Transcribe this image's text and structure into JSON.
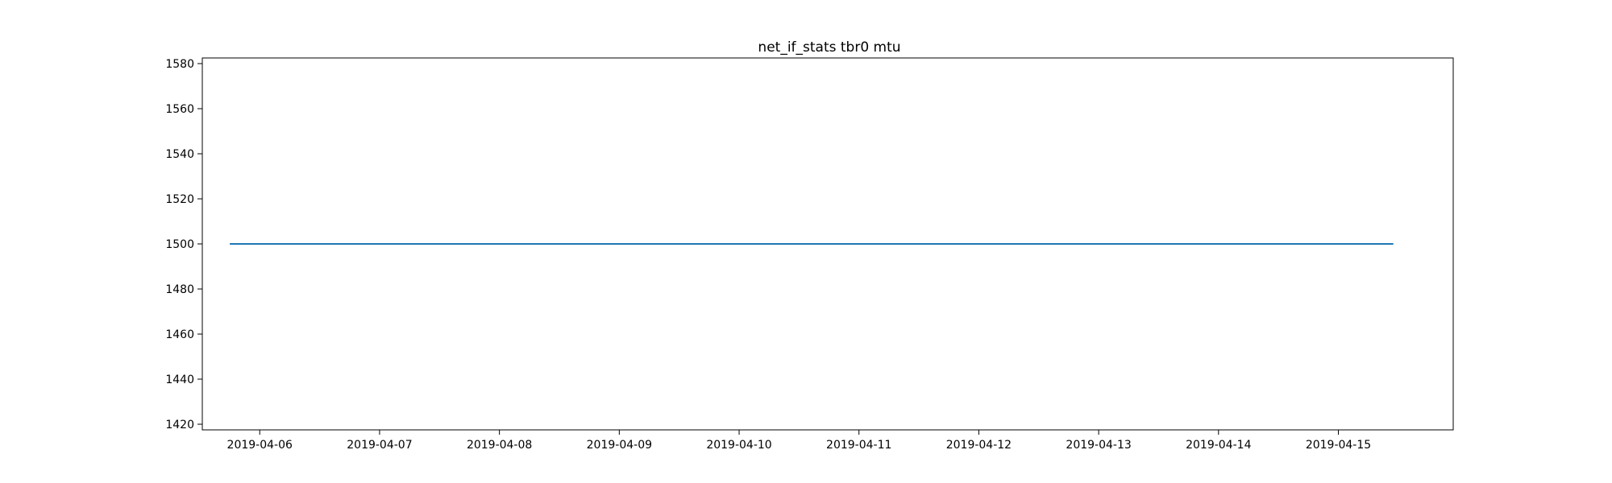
{
  "chart_data": {
    "type": "line",
    "title": "net_if_stats tbr0 mtu",
    "xlabel": "",
    "ylabel": "",
    "x_tick_labels": [
      "2019-04-06",
      "2019-04-07",
      "2019-04-08",
      "2019-04-09",
      "2019-04-10",
      "2019-04-11",
      "2019-04-12",
      "2019-04-13",
      "2019-04-14",
      "2019-04-15"
    ],
    "y_ticks": [
      1420,
      1440,
      1460,
      1480,
      1500,
      1520,
      1540,
      1560,
      1580
    ],
    "xlim": [
      "2019-04-05 12:30",
      "2019-04-15 23:00"
    ],
    "ylim": [
      1417.5,
      1582.5
    ],
    "series": [
      {
        "color": "#1f77b4",
        "x": [
          "2019-04-05 18:00",
          "2019-04-15 11:00"
        ],
        "y": [
          1500,
          1500
        ]
      }
    ],
    "grid": false,
    "legend": "none"
  }
}
